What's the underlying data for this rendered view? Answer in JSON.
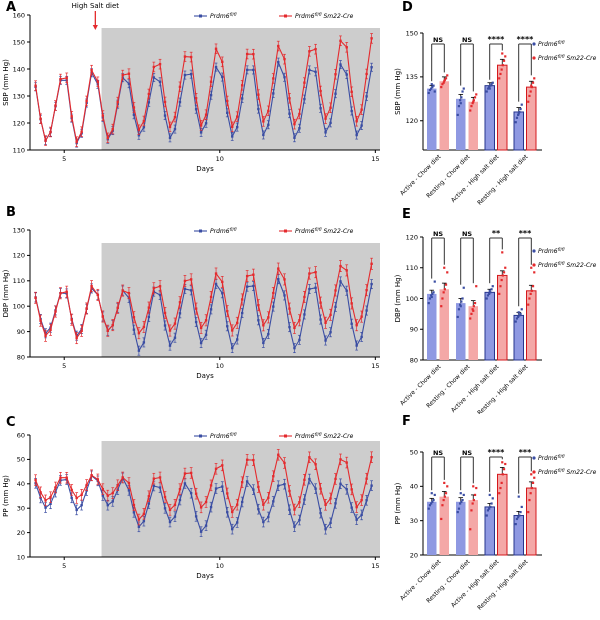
{
  "colors": {
    "blue": "#3a4da3",
    "red": "#e42a2d",
    "blue_fill": "#8f99e2",
    "red_fill": "#f4a8a7",
    "blue_stroke": "#27368e",
    "red_stroke": "#d5181c",
    "shade": "#cdcdcd",
    "axis": "#000000"
  },
  "genotypes": [
    {
      "name": "Prdm6",
      "sup": "fl/fl",
      "suffix": ""
    },
    {
      "name": "Prdm6",
      "sup": "fl/fl",
      "suffix": " Sm22-Cre"
    }
  ],
  "panels": {
    "A": {
      "label": "A"
    },
    "B": {
      "label": "B"
    },
    "C": {
      "label": "C"
    },
    "D": {
      "label": "D"
    },
    "E": {
      "label": "E"
    },
    "F": {
      "label": "F"
    }
  },
  "chart_data": [
    {
      "panel": "A",
      "type": "line",
      "title": "",
      "ylabel": "SBP (mm Hg)",
      "xlabel": "Days",
      "ylim": [
        110,
        160
      ],
      "yticks": [
        110,
        120,
        130,
        140,
        150,
        160
      ],
      "xlim": [
        3.9,
        15.15
      ],
      "xticks": [
        5,
        10,
        15
      ],
      "grid": false,
      "legend_position": "top-right",
      "shade_start": 6.2,
      "annotation": {
        "text": "High Salt diet",
        "x_day": 6.0
      },
      "days": [
        4,
        5,
        6,
        7,
        8,
        9,
        10,
        11,
        12,
        13,
        14
      ],
      "series": [
        {
          "name": "Prdm6 fl/fl",
          "color_key": "blue",
          "troughs": [
            113,
            112,
            113.5,
            115,
            114,
            116,
            114.5,
            115,
            114,
            116,
            115
          ],
          "peaks": [
            137,
            140,
            138,
            138,
            139,
            142,
            141,
            144,
            141,
            143,
            142
          ],
          "err": 1.5
        },
        {
          "name": "Prdm6 fl/fl Sm22-Cre",
          "color_key": "red",
          "troughs": [
            113,
            112.5,
            114,
            117,
            118,
            118.5,
            118,
            120,
            119,
            121,
            120
          ],
          "peaks": [
            137.5,
            141,
            139,
            142,
            146,
            149,
            147,
            150,
            148,
            152,
            153
          ],
          "err": 1.8
        }
      ]
    },
    {
      "panel": "B",
      "type": "line",
      "title": "",
      "ylabel": "DBP (mm Hg)",
      "xlabel": "Days",
      "ylim": [
        80,
        130
      ],
      "yticks": [
        80,
        90,
        100,
        110,
        120,
        130
      ],
      "xlim": [
        3.9,
        15.15
      ],
      "xticks": [
        5,
        10,
        15
      ],
      "grid": false,
      "legend_position": "top-right",
      "shade_start": 6.2,
      "days": [
        4,
        5,
        6,
        7,
        8,
        9,
        10,
        11,
        12,
        13,
        14
      ],
      "series": [
        {
          "name": "Prdm6 fl/fl",
          "color_key": "blue",
          "troughs": [
            89,
            88,
            90,
            82,
            84,
            85,
            83,
            85,
            83,
            86,
            84
          ],
          "peaks": [
            106,
            108,
            107,
            107,
            108,
            110,
            109,
            112,
            108,
            111,
            110
          ],
          "err": 1.8
        },
        {
          "name": "Prdm6 fl/fl Sm22-Cre",
          "color_key": "red",
          "troughs": [
            88,
            87,
            90,
            89,
            90,
            91,
            90,
            92,
            91,
            93,
            92
          ],
          "peaks": [
            106,
            109,
            107,
            108,
            111,
            114,
            113,
            116,
            114,
            117,
            118
          ],
          "err": 2.2
        }
      ]
    },
    {
      "panel": "C",
      "type": "line",
      "title": "",
      "ylabel": "PP (mm Hg)",
      "xlabel": "Days",
      "ylim": [
        10,
        60
      ],
      "yticks": [
        10,
        20,
        30,
        40,
        50,
        60
      ],
      "xlim": [
        3.9,
        15.15
      ],
      "xticks": [
        5,
        10,
        15
      ],
      "grid": false,
      "legend_position": "top-right",
      "shade_start": 6.2,
      "days": [
        4,
        5,
        6,
        7,
        8,
        9,
        10,
        11,
        12,
        13,
        14
      ],
      "series": [
        {
          "name": "Prdm6 fl/fl",
          "color_key": "blue",
          "troughs": [
            30,
            29,
            31,
            22,
            24,
            20,
            21,
            24,
            22,
            21,
            25
          ],
          "peaks": [
            42,
            44,
            43,
            40,
            41,
            39,
            42,
            40,
            43,
            41,
            40
          ],
          "err": 2.0
        },
        {
          "name": "Prdm6 fl/fl Sm22-Cre",
          "color_key": "red",
          "troughs": [
            33,
            34,
            35,
            25,
            29,
            30,
            28,
            31,
            29,
            31,
            30
          ],
          "peaks": [
            43,
            44,
            43,
            43,
            45,
            47,
            51,
            53,
            52,
            51,
            52
          ],
          "err": 2.2
        }
      ]
    },
    {
      "panel": "D",
      "type": "bar",
      "title": "",
      "ylabel": "SBP (mm Hg)",
      "ylim": [
        110,
        150
      ],
      "yticks": [
        120,
        135,
        150
      ],
      "categories": [
        "Active - Chow diet",
        "Resting - Chow diet",
        "Active - High salt diet",
        "Resting - High salt diet"
      ],
      "sig": [
        "NS",
        "NS",
        "****",
        "****"
      ],
      "outlined_groups": [
        2,
        3
      ],
      "legend_position": "right",
      "series": [
        {
          "name": "Prdm6 fl/fl",
          "color_key": "blue",
          "values": [
            131,
            127.5,
            132,
            123
          ],
          "err": [
            1,
            1.5,
            1,
            1.5
          ],
          "points": [
            [
              129.5,
              130.5,
              131,
              131.5,
              132,
              130,
              132.5
            ],
            [
              122,
              125,
              127,
              128,
              130,
              131,
              126
            ],
            [
              130,
              131,
              131.5,
              132,
              132.5,
              133,
              131
            ],
            [
              119.5,
              121,
              122,
              123,
              124,
              125.5,
              122.5
            ]
          ]
        },
        {
          "name": "Prdm6 fl/fl Sm22-Cre",
          "color_key": "red",
          "values": [
            133.5,
            126.5,
            139,
            131.5
          ],
          "err": [
            1.5,
            1.5,
            2,
            2
          ],
          "points": [
            [
              131.5,
              132.5,
              133,
              134,
              134.5,
              135.5,
              133.5
            ],
            [
              123.5,
              125,
              126,
              127,
              128,
              129,
              126.5
            ],
            [
              134.5,
              136,
              137.5,
              139,
              140.5,
              142,
              143
            ],
            [
              126.5,
              128.5,
              130,
              131.5,
              133,
              134.5,
              132
            ]
          ]
        }
      ]
    },
    {
      "panel": "E",
      "type": "bar",
      "title": "",
      "ylabel": "DBP (mm Hg)",
      "ylim": [
        80,
        120
      ],
      "yticks": [
        80,
        90,
        100,
        110,
        120
      ],
      "categories": [
        "Active - Chow diet",
        "Resting - Chow diet",
        "Active - High salt diet",
        "Resting - High salt diet"
      ],
      "sig": [
        "NS",
        "NS",
        "**",
        "***"
      ],
      "outlined_groups": [
        2,
        3
      ],
      "legend_position": "right",
      "series": [
        {
          "name": "Prdm6 fl/fl",
          "color_key": "blue",
          "values": [
            101.5,
            98.5,
            102,
            94.5
          ],
          "err": [
            1.2,
            1.5,
            1,
            1
          ],
          "points": [
            [
              98.5,
              100,
              101,
              101.5,
              102,
              105.5,
              100.5
            ],
            [
              94,
              96.5,
              98,
              99,
              100,
              103.5,
              97.5
            ],
            [
              100,
              101,
              101.5,
              102,
              103,
              104,
              102.5
            ],
            [
              92.5,
              93.5,
              94,
              94.5,
              95,
              96.5,
              95.5
            ]
          ]
        },
        {
          "name": "Prdm6 fl/fl Sm22-Cre",
          "color_key": "red",
          "values": [
            103,
            97.5,
            107.5,
            102.5
          ],
          "err": [
            2,
            1.8,
            1.5,
            1.8
          ],
          "points": [
            [
              97.5,
              100,
              102,
              103,
              104.5,
              108.5,
              110
            ],
            [
              93.5,
              95,
              96.5,
              97.5,
              98.5,
              104,
              96
            ],
            [
              101.5,
              104,
              106,
              107.5,
              108.5,
              110,
              115
            ],
            [
              98,
              100,
              101.5,
              102.5,
              104,
              108.5,
              110
            ]
          ]
        }
      ]
    },
    {
      "panel": "F",
      "type": "bar",
      "title": "",
      "ylabel": "PP (mm Hg)",
      "ylim": [
        20,
        50
      ],
      "yticks": [
        20,
        30,
        40,
        50
      ],
      "categories": [
        "Active - Chow diet",
        "Resting - Chow diet",
        "Active - High salt diet",
        "Resting - High salt diet"
      ],
      "sig": [
        "NS",
        "NS",
        "****",
        "***"
      ],
      "outlined_groups": [
        2,
        3
      ],
      "legend_position": "right",
      "series": [
        {
          "name": "Prdm6 fl/fl",
          "color_key": "blue",
          "values": [
            35.5,
            35.5,
            34,
            31.5
          ],
          "err": [
            1,
            1.2,
            1,
            1.2
          ],
          "points": [
            [
              33.5,
              34.5,
              35,
              35.5,
              36,
              37.5,
              38
            ],
            [
              32.5,
              33.5,
              35,
              35.5,
              36,
              37.5,
              38
            ],
            [
              31.5,
              33,
              33.5,
              34,
              35,
              36.5,
              37.5
            ],
            [
              29,
              30.5,
              31,
              31.5,
              32.5,
              34,
              37
            ]
          ]
        },
        {
          "name": "Prdm6 fl/fl Sm22-Cre",
          "color_key": "red",
          "values": [
            37,
            36,
            43.5,
            39.5
          ],
          "err": [
            1.5,
            1.5,
            2,
            1.8
          ],
          "points": [
            [
              30.5,
              34.5,
              36,
              37,
              38,
              40,
              41
            ],
            [
              27.5,
              33,
              35,
              36,
              37.5,
              39.5,
              40
            ],
            [
              38,
              39.5,
              41,
              43.5,
              45,
              46.5,
              47
            ],
            [
              32.5,
              36,
              38,
              39.5,
              41,
              42.5,
              43.5
            ]
          ]
        }
      ]
    }
  ]
}
